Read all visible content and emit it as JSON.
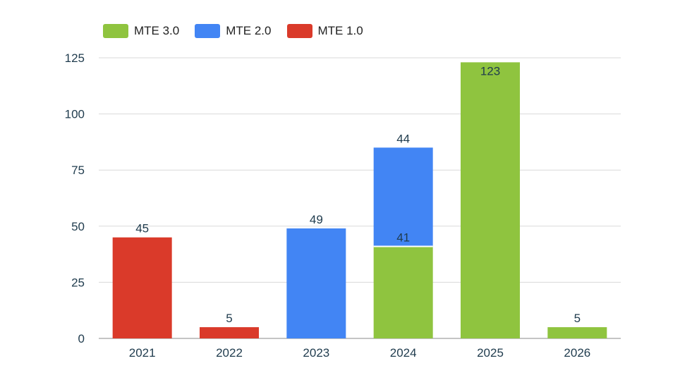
{
  "chart_data": {
    "type": "bar",
    "stacked": true,
    "categories": [
      "2021",
      "2022",
      "2023",
      "2024",
      "2025",
      "2026"
    ],
    "series": [
      {
        "name": "MTE 3.0",
        "color": "#8fc43f",
        "values": [
          0,
          0,
          0,
          41,
          123,
          5
        ]
      },
      {
        "name": "MTE 2.0",
        "color": "#4285f4",
        "values": [
          0,
          0,
          49,
          44,
          0,
          0
        ]
      },
      {
        "name": "MTE 1.0",
        "color": "#da3a2a",
        "values": [
          45,
          5,
          0,
          0,
          0,
          0
        ]
      }
    ],
    "ylim": [
      0,
      125
    ],
    "yticks": [
      0,
      25,
      50,
      75,
      100,
      125
    ],
    "grid": true,
    "legend_position": "top-left",
    "data_labels": true
  }
}
